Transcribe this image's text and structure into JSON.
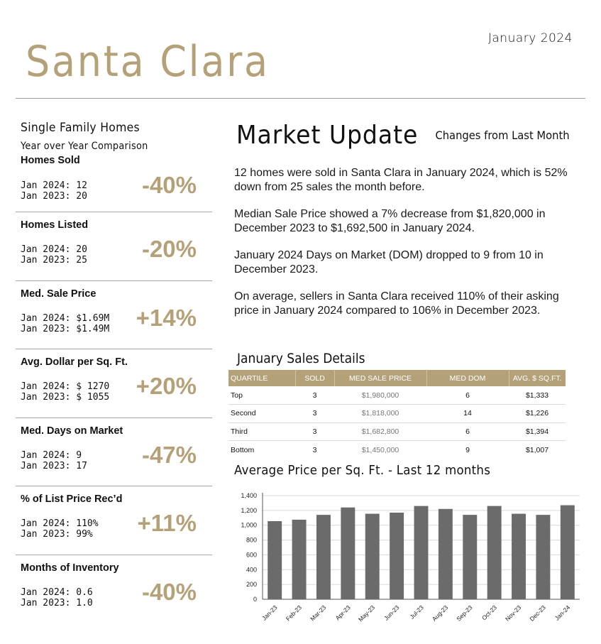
{
  "header": {
    "date": "January 2024",
    "city": "Santa Clara"
  },
  "left": {
    "title": "Single Family Homes",
    "subtitle": "Year over Year Comparison",
    "stats": [
      {
        "label": "Homes Sold",
        "line1": "Jan 2024:  12",
        "line2": "Jan 2023:  20",
        "change": "-40%"
      },
      {
        "label": "Homes Listed",
        "line1": "Jan 2024:  20",
        "line2": "Jan 2023:  25",
        "change": "-20%"
      },
      {
        "label": "Med. Sale Price",
        "line1": "Jan 2024:  $1.69M",
        "line2": "Jan 2023:  $1.49M",
        "change": "+14%"
      },
      {
        "label": "Avg. Dollar per Sq. Ft.",
        "line1": "Jan 2024: $ 1270",
        "line2": "Jan 2023: $ 1055",
        "change": "+20%"
      },
      {
        "label": "Med. Days on Market",
        "line1": "Jan 2024:  9",
        "line2": "Jan 2023:  17",
        "change": "-47%"
      },
      {
        "label": "% of List Price Rec’d",
        "line1": "Jan 2024:  110%",
        "line2": "Jan 2023:  99%",
        "change": "+11%"
      },
      {
        "label": "Months of Inventory",
        "line1": "Jan 2024:  0.6",
        "line2": "Jan 2023:  1.0",
        "change": "-40%"
      }
    ]
  },
  "market": {
    "title": "Market Update",
    "changes_label": "Changes from Last Month",
    "paragraphs": [
      "12 homes were sold in Santa Clara in January 2024, which is 52% down from 25 sales the month before.",
      "Median Sale Price showed a 7% decrease from $1,820,000 in December 2023 to $1,692,500 in January 2024.",
      "January 2024 Days on Market (DOM) dropped to 9 from 10 in December 2023.",
      "On average, sellers in Santa Clara received 110% of their asking price in January 2024 compared to 106% in December 2023."
    ]
  },
  "sales": {
    "title": "January Sales Details",
    "headers": [
      "QUARTILE",
      "SOLD",
      "MED SALE PRICE",
      "MED DOM",
      "AVG. $ SQ.FT."
    ],
    "rows": [
      [
        "Top",
        "3",
        "$1,980,000",
        "6",
        "$1,333"
      ],
      [
        "Second",
        "3",
        "$1,818,000",
        "14",
        "$1,226"
      ],
      [
        "Third",
        "3",
        "$1,682,800",
        "6",
        "$1,394"
      ],
      [
        "Bottom",
        "3",
        "$1,450,000",
        "9",
        "$1,007"
      ]
    ]
  },
  "chart": {
    "title": "Average Price per Sq. Ft. - Last 12 months",
    "bar_color": "#6b6b6b"
  },
  "chart_data": {
    "type": "bar",
    "categories": [
      "Jan-23",
      "Feb-23",
      "Mar-23",
      "Apr-23",
      "May-23",
      "Jun-23",
      "Jul-23",
      "Aug-23",
      "Sep-23",
      "Oct-23",
      "Nov-23",
      "Dec-23",
      "Jan-24"
    ],
    "values": [
      1055,
      1075,
      1140,
      1240,
      1155,
      1170,
      1260,
      1220,
      1140,
      1260,
      1155,
      1140,
      1270
    ],
    "yticks": [
      0,
      200,
      400,
      600,
      800,
      1000,
      1200,
      1400
    ],
    "yticklabels": [
      "0",
      "200",
      "400",
      "600",
      "800",
      "1,000",
      "1,200",
      "1,400"
    ],
    "ylim": [
      0,
      1400
    ],
    "grid": true,
    "title": "Average Price per Sq. Ft. - Last 12 months"
  }
}
